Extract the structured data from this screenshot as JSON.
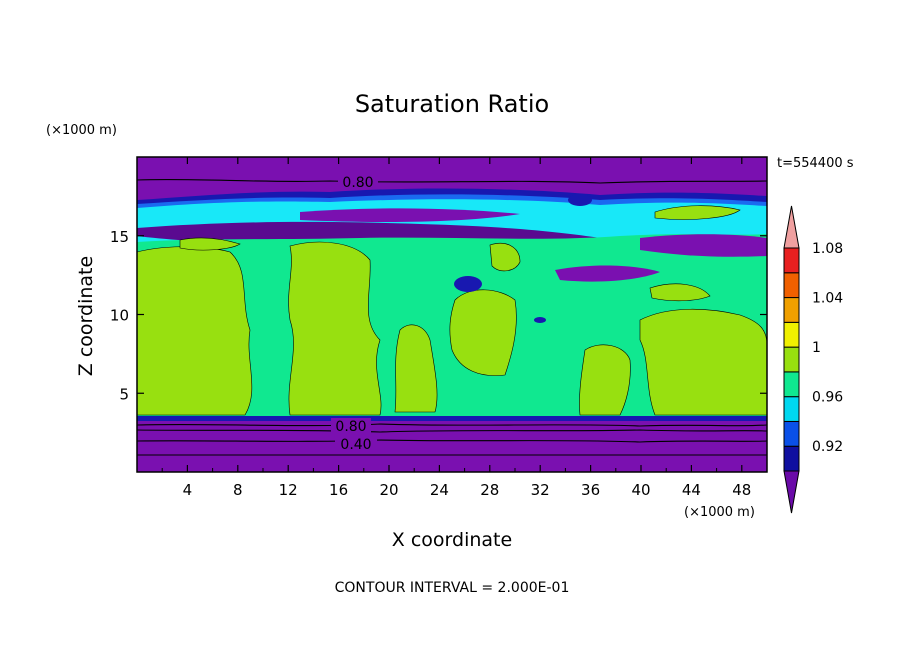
{
  "chart_data": {
    "type": "heatmap",
    "title": "Saturation Ratio",
    "xlabel": "X coordinate",
    "ylabel": "Z coordinate",
    "x_unit": "(×1000 m)",
    "z_unit": "(×1000 m)",
    "time_label": "t=554400 s",
    "footer": "CONTOUR INTERVAL = 2.000E-01",
    "xlim": [
      0,
      50
    ],
    "ylim": [
      0,
      20
    ],
    "x_ticks": [
      "4",
      "8",
      "12",
      "16",
      "20",
      "24",
      "28",
      "32",
      "36",
      "40",
      "44",
      "48"
    ],
    "y_ticks": [
      "5",
      "10",
      "15"
    ],
    "contour_labels": [
      "0.80",
      "0.80",
      "0.40"
    ],
    "colorbar": {
      "tick_labels": [
        "0.92",
        "0.96",
        "1",
        "1.04",
        "1.08"
      ],
      "colors": [
        "#6a0aa8",
        "#1010a0",
        "#0a50e8",
        "#00d8f0",
        "#10e890",
        "#98e010",
        "#f0f000",
        "#f0a000",
        "#f06000",
        "#e82020",
        "#f0a0a0"
      ]
    },
    "band_colors": {
      "below": "#7a10b0",
      "deep_blue": "#1818b0",
      "blue": "#1a6af0",
      "cyan": "#18e8f8",
      "green": "#10e890",
      "lime": "#98e010"
    }
  }
}
